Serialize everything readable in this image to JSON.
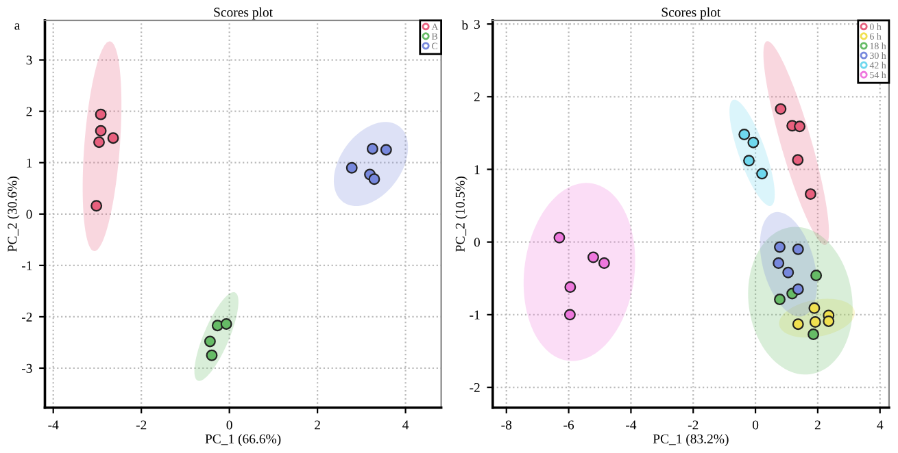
{
  "chart_data": [
    {
      "type": "scatter",
      "title": "Scores plot",
      "xlabel": "PC_1 (66.6%)",
      "ylabel": "PC_2 (30.6%)",
      "annotations": [
        "a"
      ],
      "xlim": [
        -4.19,
        4.81
      ],
      "ylim": [
        -3.77,
        3.77
      ],
      "xticks": [
        -4,
        -2,
        0,
        2,
        4
      ],
      "yticks": [
        -3,
        -2,
        -1,
        0,
        1,
        2,
        3
      ],
      "grid": true,
      "legend": "top right",
      "marker": "circle",
      "series": [
        {
          "name": "A",
          "color": "#e8607e",
          "x": [
            -2.92,
            -2.92,
            -2.96,
            -2.64,
            -3.02
          ],
          "values": [
            1.94,
            1.62,
            1.4,
            1.48,
            0.16
          ]
        },
        {
          "name": "B",
          "color": "#66bb66",
          "x": [
            -0.27,
            null,
            -0.07,
            -0.44,
            -0.4
          ],
          "values": [
            -2.17,
            null,
            -2.14,
            -2.48,
            -2.75
          ]
        },
        {
          "name": "C",
          "color": "#7788dd",
          "x": [
            3.25,
            3.56,
            2.78,
            3.19,
            3.29
          ],
          "values": [
            1.27,
            1.25,
            0.9,
            0.77,
            0.68
          ]
        }
      ]
    },
    {
      "type": "scatter",
      "title": "Scores plot",
      "xlabel": "PC_1 (83.2%)",
      "ylabel": "PC_2 (10.5%)",
      "annotations": [
        "b"
      ],
      "xlim": [
        -8.44,
        4.29
      ],
      "ylim": [
        -2.28,
        3.05
      ],
      "xticks": [
        -8,
        -6,
        -4,
        -2,
        0,
        2,
        4
      ],
      "yticks": [
        -2,
        -1,
        0,
        1,
        2,
        3
      ],
      "grid": true,
      "legend": "top right",
      "marker": "circle",
      "series": [
        {
          "name": "0 h",
          "color": "#e8607e",
          "x": [
            0.81,
            1.18,
            1.42,
            1.36,
            1.77
          ],
          "values": [
            1.83,
            1.6,
            1.59,
            1.13,
            0.66
          ]
        },
        {
          "name": "6 h",
          "color": "#f0e050",
          "x": [
            1.89,
            1.92,
            1.37,
            2.35,
            2.35
          ],
          "values": [
            -0.91,
            -1.1,
            -1.13,
            -1.01,
            -1.09
          ]
        },
        {
          "name": "18 h",
          "color": "#66bb66",
          "x": [
            1.95,
            1.18,
            0.78,
            null,
            1.86
          ],
          "values": [
            -0.46,
            -0.71,
            -0.79,
            null,
            -1.27
          ]
        },
        {
          "name": "30 h",
          "color": "#7788dd",
          "x": [
            0.78,
            1.37,
            0.74,
            1.05,
            1.37
          ],
          "values": [
            -0.07,
            -0.1,
            -0.29,
            -0.42,
            -0.65
          ]
        },
        {
          "name": "42 h",
          "color": "#6fd8ee",
          "x": [
            -0.36,
            null,
            -0.07,
            -0.21,
            0.21
          ],
          "values": [
            1.48,
            null,
            1.37,
            1.12,
            0.94
          ]
        },
        {
          "name": "54 h",
          "color": "#ee77dd",
          "x": [
            -6.3,
            -5.21,
            -4.86,
            -5.95,
            -5.96
          ],
          "values": [
            0.06,
            -0.21,
            -0.29,
            -0.62,
            -1.0
          ]
        }
      ]
    }
  ]
}
